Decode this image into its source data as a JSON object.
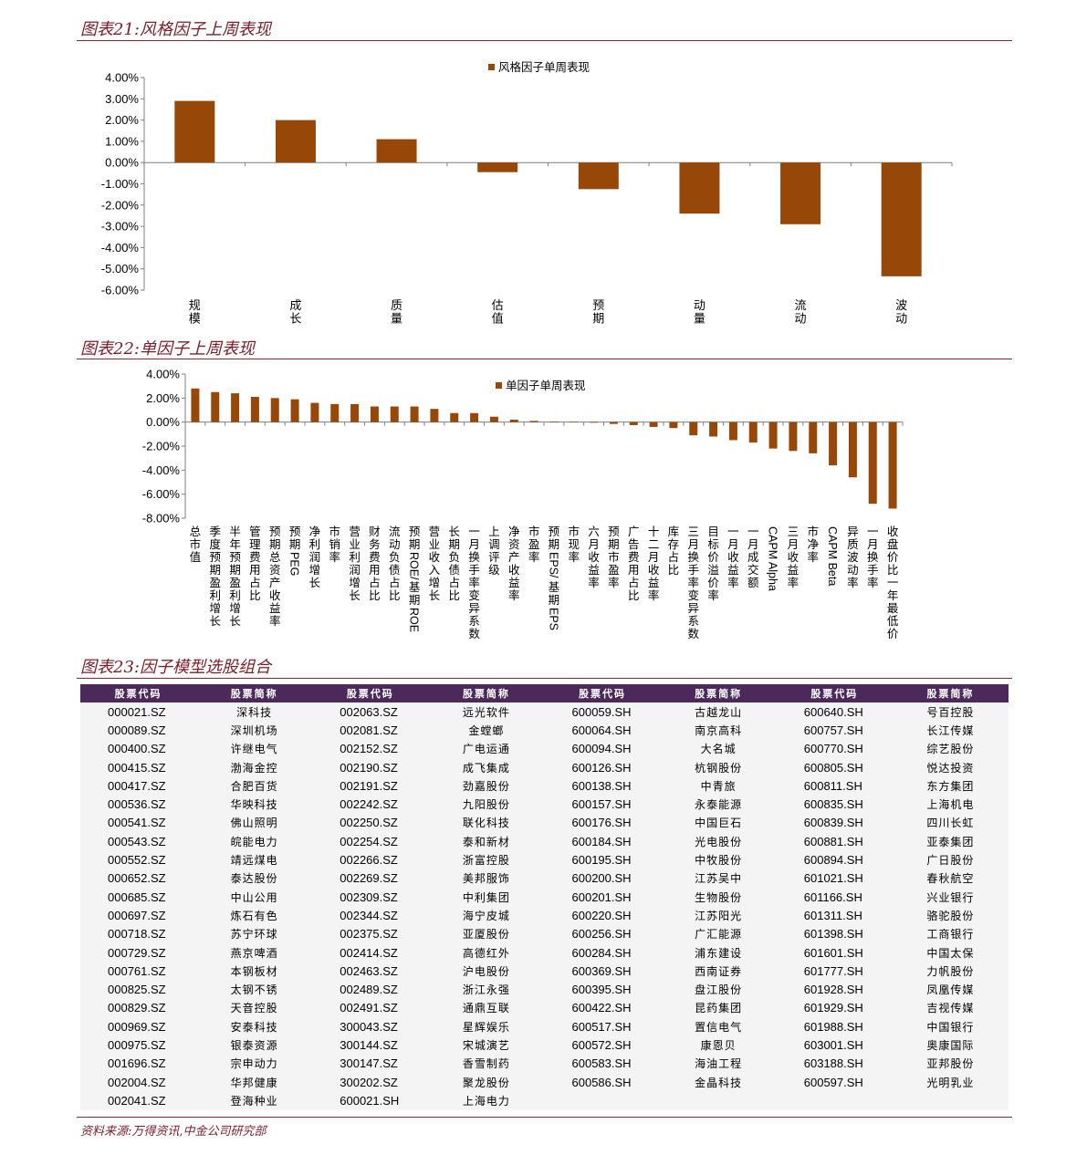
{
  "sections": {
    "fig21_title": "图表21:风格因子上周表现",
    "fig22_title": "图表22:单因子上周表现",
    "fig23_title": "图表23:因子模型选股组合",
    "source": "资料来源:万得资讯,中金公司研究部"
  },
  "colors": {
    "bar": "#974708",
    "title": "#7b1e2a",
    "header_bg": "#4b2a5b"
  },
  "chart_data": [
    {
      "type": "bar",
      "title": "",
      "legend": "风格因子单周表现",
      "legend_position": "top-center",
      "categories": [
        "规模",
        "成长",
        "质量",
        "估值",
        "预期",
        "动量",
        "流动",
        "波动"
      ],
      "values": [
        2.9,
        2.0,
        1.1,
        -0.45,
        -1.25,
        -2.4,
        -2.9,
        -5.35
      ],
      "ylim": [
        -6,
        4
      ],
      "yticks": [
        "4.00%",
        "3.00%",
        "2.00%",
        "1.00%",
        "0.00%",
        "-1.00%",
        "-2.00%",
        "-3.00%",
        "-4.00%",
        "-5.00%",
        "-6.00%"
      ],
      "grid": false
    },
    {
      "type": "bar",
      "title": "",
      "legend": "单因子单周表现",
      "legend_position": "top-center",
      "categories": [
        "总市值",
        "季度预期盈利增长",
        "半年预期盈利增长",
        "管理费用占比",
        "预期总资产收益率",
        "预期PEG",
        "净利润增长",
        "市销率",
        "营业利润增长",
        "财务费用占比",
        "流动负债占比",
        "预期ROE/基期ROE",
        "营业收入增长",
        "长期负债占比",
        "一月换手率变异系数",
        "上调评级",
        "净资产收益率",
        "市盈率",
        "预期EPS/基期EPS",
        "市现率",
        "六月收益率",
        "预期市盈率",
        "广告费用占比",
        "十二月收益率",
        "库存占比",
        "三月换手率变异系数",
        "目标价溢价率",
        "一月收益率",
        "一月成交额",
        "CAPM Alpha",
        "三月收益率",
        "市净率",
        "CAPM Beta",
        "异质波动率",
        "一月换手率",
        "收盘价比一年最低价"
      ],
      "values": [
        2.8,
        2.5,
        2.4,
        2.1,
        2.0,
        1.9,
        1.6,
        1.5,
        1.5,
        1.3,
        1.3,
        1.3,
        1.1,
        0.75,
        0.75,
        0.45,
        0.2,
        0.1,
        0.05,
        0.03,
        -0.05,
        -0.15,
        -0.25,
        -0.4,
        -0.5,
        -1.1,
        -1.2,
        -1.5,
        -1.7,
        -2.2,
        -2.4,
        -2.6,
        -3.6,
        -4.6,
        -6.8,
        -7.2
      ],
      "ylim": [
        -8,
        4
      ],
      "yticks": [
        "4.00%",
        "2.00%",
        "0.00%",
        "-2.00%",
        "-4.00%",
        "-6.00%",
        "-8.00%"
      ],
      "grid": false
    }
  ],
  "table": {
    "headers": [
      "股票代码",
      "股票简称",
      "股票代码",
      "股票简称",
      "股票代码",
      "股票简称",
      "股票代码",
      "股票简称"
    ],
    "rows": [
      [
        "000021.SZ",
        "深科技",
        "002063.SZ",
        "远光软件",
        "600059.SH",
        "古越龙山",
        "600640.SH",
        "号百控股"
      ],
      [
        "000089.SZ",
        "深圳机场",
        "002081.SZ",
        "金螳螂",
        "600064.SH",
        "南京高科",
        "600757.SH",
        "长江传媒"
      ],
      [
        "000400.SZ",
        "许继电气",
        "002152.SZ",
        "广电运通",
        "600094.SH",
        "大名城",
        "600770.SH",
        "综艺股份"
      ],
      [
        "000415.SZ",
        "渤海金控",
        "002190.SZ",
        "成飞集成",
        "600126.SH",
        "杭钢股份",
        "600805.SH",
        "悦达投资"
      ],
      [
        "000417.SZ",
        "合肥百货",
        "002191.SZ",
        "劲嘉股份",
        "600138.SH",
        "中青旅",
        "600811.SH",
        "东方集团"
      ],
      [
        "000536.SZ",
        "华映科技",
        "002242.SZ",
        "九阳股份",
        "600157.SH",
        "永泰能源",
        "600835.SH",
        "上海机电"
      ],
      [
        "000541.SZ",
        "佛山照明",
        "002250.SZ",
        "联化科技",
        "600176.SH",
        "中国巨石",
        "600839.SH",
        "四川长虹"
      ],
      [
        "000543.SZ",
        "皖能电力",
        "002254.SZ",
        "泰和新材",
        "600184.SH",
        "光电股份",
        "600881.SH",
        "亚泰集团"
      ],
      [
        "000552.SZ",
        "靖远煤电",
        "002266.SZ",
        "浙富控股",
        "600195.SH",
        "中牧股份",
        "600894.SH",
        "广日股份"
      ],
      [
        "000652.SZ",
        "泰达股份",
        "002269.SZ",
        "美邦服饰",
        "600200.SH",
        "江苏吴中",
        "601021.SH",
        "春秋航空"
      ],
      [
        "000685.SZ",
        "中山公用",
        "002309.SZ",
        "中利集团",
        "600201.SH",
        "生物股份",
        "601166.SH",
        "兴业银行"
      ],
      [
        "000697.SZ",
        "炼石有色",
        "002344.SZ",
        "海宁皮城",
        "600220.SH",
        "江苏阳光",
        "601311.SH",
        "骆驼股份"
      ],
      [
        "000718.SZ",
        "苏宁环球",
        "002375.SZ",
        "亚厦股份",
        "600256.SH",
        "广汇能源",
        "601398.SH",
        "工商银行"
      ],
      [
        "000729.SZ",
        "燕京啤酒",
        "002414.SZ",
        "高德红外",
        "600284.SH",
        "浦东建设",
        "601601.SH",
        "中国太保"
      ],
      [
        "000761.SZ",
        "本钢板材",
        "002463.SZ",
        "沪电股份",
        "600369.SH",
        "西南证券",
        "601777.SH",
        "力帆股份"
      ],
      [
        "000825.SZ",
        "太钢不锈",
        "002489.SZ",
        "浙江永强",
        "600395.SH",
        "盘江股份",
        "601928.SH",
        "凤凰传媒"
      ],
      [
        "000829.SZ",
        "天音控股",
        "002491.SZ",
        "通鼎互联",
        "600422.SH",
        "昆药集团",
        "601929.SH",
        "吉视传媒"
      ],
      [
        "000969.SZ",
        "安泰科技",
        "300043.SZ",
        "星辉娱乐",
        "600517.SH",
        "置信电气",
        "601988.SH",
        "中国银行"
      ],
      [
        "000975.SZ",
        "银泰资源",
        "300144.SZ",
        "宋城演艺",
        "600572.SH",
        "康恩贝",
        "603001.SH",
        "奥康国际"
      ],
      [
        "001696.SZ",
        "宗申动力",
        "300147.SZ",
        "香雪制药",
        "600583.SH",
        "海油工程",
        "603188.SH",
        "亚邦股份"
      ],
      [
        "002004.SZ",
        "华邦健康",
        "300202.SZ",
        "聚龙股份",
        "600586.SH",
        "金晶科技",
        "600597.SH",
        "光明乳业"
      ],
      [
        "002041.SZ",
        "登海种业",
        "600021.SH",
        "上海电力",
        "",
        "",
        "",
        ""
      ]
    ]
  }
}
